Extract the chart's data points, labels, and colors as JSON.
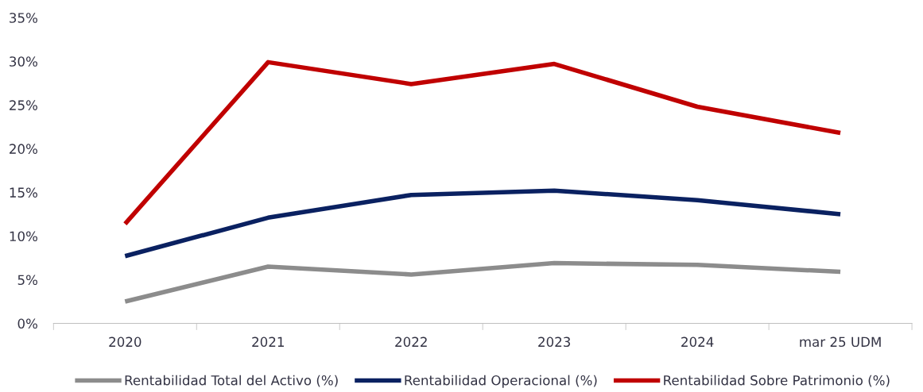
{
  "chart_data": {
    "type": "line",
    "categories": [
      "2020",
      "2021",
      "2022",
      "2023",
      "2024",
      "mar 25 UDM"
    ],
    "series": [
      {
        "name": "Rentabilidad Total del Activo (%)",
        "color": "#8c8c8c",
        "values": [
          2.5,
          6.5,
          5.6,
          6.9,
          6.7,
          5.9
        ]
      },
      {
        "name": "Rentabilidad Operacional (%)",
        "color": "#0a2161",
        "values": [
          7.7,
          12.1,
          14.7,
          15.2,
          14.1,
          12.5
        ]
      },
      {
        "name": "Rentabilidad Sobre Patrimonio (%)",
        "color": "#c00000",
        "values": [
          11.4,
          29.9,
          27.4,
          29.7,
          24.8,
          21.8
        ]
      }
    ],
    "ylim": [
      0,
      35
    ],
    "yticks": [
      {
        "value": 0,
        "label": "0%"
      },
      {
        "value": 5,
        "label": "5%"
      },
      {
        "value": 10,
        "label": "10%"
      },
      {
        "value": 15,
        "label": "15%"
      },
      {
        "value": 20,
        "label": "20%"
      },
      {
        "value": 25,
        "label": "25%"
      },
      {
        "value": 30,
        "label": "30%"
      },
      {
        "value": 35,
        "label": "35%"
      }
    ],
    "grid": false,
    "legend": "bottom",
    "marker": "none",
    "line_style": "solid"
  }
}
